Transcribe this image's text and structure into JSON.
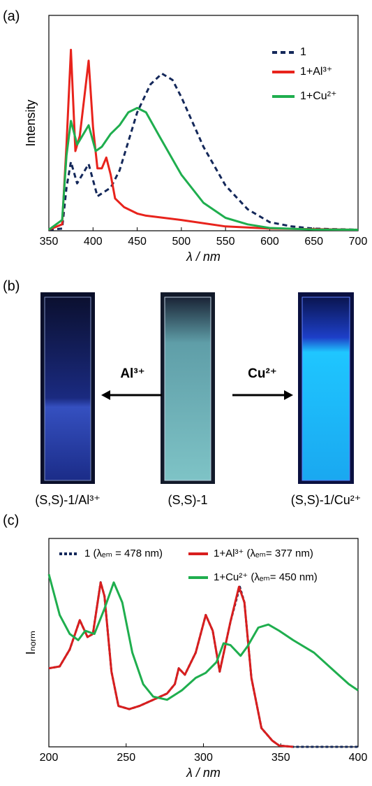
{
  "chart_data": [
    {
      "type": "line",
      "label": "(a)",
      "y_label": "Intensity",
      "x_label": "λ / nm",
      "xlim": [
        350,
        700
      ],
      "xticks": [
        350,
        400,
        450,
        500,
        550,
        600,
        650,
        700
      ],
      "ylim": [
        0,
        100
      ],
      "series": [
        {
          "name": "1",
          "color": "#14285a",
          "linestyle": "dashed",
          "x": [
            350,
            365,
            370,
            375,
            382,
            395,
            405,
            420,
            430,
            450,
            465,
            478,
            490,
            500,
            525,
            550,
            575,
            600,
            625,
            650,
            700
          ],
          "values": [
            0.5,
            1,
            20,
            32,
            22,
            31,
            16,
            20,
            28,
            55,
            68,
            73,
            70,
            62,
            39,
            21,
            10,
            4,
            2,
            1,
            0.5
          ]
        },
        {
          "name": "1+Al³⁺",
          "color": "#e8231c",
          "linestyle": "solid",
          "x": [
            350,
            365,
            370,
            375,
            380,
            385,
            395,
            400,
            405,
            410,
            415,
            420,
            425,
            435,
            450,
            460,
            500,
            550,
            600,
            700
          ],
          "values": [
            0.5,
            3,
            40,
            84,
            37,
            44,
            79,
            48,
            29,
            29,
            34,
            26,
            15,
            11,
            8,
            7,
            5,
            2,
            1,
            0.5
          ]
        },
        {
          "name": "1+Cu²⁺",
          "color": "#1fae4e",
          "linestyle": "solid",
          "x": [
            350,
            365,
            370,
            375,
            382,
            395,
            403,
            410,
            420,
            430,
            440,
            450,
            460,
            475,
            500,
            525,
            550,
            575,
            600,
            650,
            700
          ],
          "values": [
            0.5,
            5,
            35,
            51,
            40,
            49,
            37,
            39,
            45,
            49,
            55,
            57,
            55,
            44,
            26,
            13,
            6,
            3,
            1.3,
            0.6,
            0.5
          ]
        }
      ]
    },
    {
      "type": "line",
      "label": "(c)",
      "y_label": "Iₙₒᵣₘ",
      "x_label": "λ / nm",
      "xlim": [
        200,
        400
      ],
      "xticks": [
        200,
        250,
        300,
        350,
        400
      ],
      "ylim": [
        0,
        100
      ],
      "series": [
        {
          "name": "1 (λₑₘ = 478 nm)",
          "color": "#14285a",
          "linestyle": "dotted",
          "x": [
            200,
            207,
            213.5,
            220,
            225,
            228.5,
            233.5,
            236,
            240.5,
            245,
            252,
            258.5,
            267.5,
            276.5,
            281.5,
            284,
            288,
            295,
            301.5,
            306,
            310.5,
            317.5,
            323.5,
            326.5,
            331,
            337.5,
            344.5,
            349,
            358,
            400
          ],
          "values": [
            37.7,
            38.6,
            46.7,
            60.8,
            52.7,
            54.2,
            79,
            72.3,
            36.1,
            19.6,
            18.1,
            19.6,
            22.6,
            25.6,
            30.1,
            37.7,
            34.6,
            45.2,
            63.3,
            55.7,
            36.1,
            60.2,
            76.8,
            69.3,
            33.1,
            9,
            3,
            0.6,
            0,
            0
          ]
        },
        {
          "name": "1+Al³⁺ (λₑₘ= 377 nm)",
          "color": "#d81e1e",
          "linestyle": "solid",
          "x": [
            200,
            207,
            213.5,
            220,
            225,
            228.5,
            233.5,
            236,
            240.5,
            245,
            252,
            258.5,
            267.5,
            276.5,
            281.5,
            284,
            288,
            295,
            301.5,
            306,
            310.5,
            317.5,
            323,
            326.5,
            331,
            337.5,
            344.5,
            349,
            358
          ],
          "values": [
            37.7,
            38.6,
            46.7,
            60.8,
            52.7,
            54.2,
            78.9,
            72.3,
            36.1,
            19.6,
            18.1,
            19.6,
            22.6,
            25.6,
            30.1,
            37.7,
            34.6,
            45.2,
            63.3,
            55.7,
            36.1,
            60.2,
            76.8,
            69.3,
            33.1,
            9,
            3,
            0.6,
            0
          ]
        },
        {
          "name": "1+Cu²⁺ (λₑₘ= 450 nm)",
          "color": "#1fae4e",
          "linestyle": "solid",
          "x": [
            200,
            207,
            213.5,
            219,
            223.5,
            229.5,
            236,
            242,
            247.5,
            254,
            261,
            267.5,
            276.5,
            286,
            295,
            301.5,
            308.5,
            313,
            317.5,
            324,
            328.5,
            335.5,
            342,
            349,
            358,
            371.5,
            385,
            394,
            400
          ],
          "values": [
            82.8,
            63.3,
            54.2,
            51.2,
            55.7,
            54.2,
            66.3,
            78.9,
            69.3,
            45.2,
            30.1,
            24.1,
            22.6,
            27.1,
            33.1,
            35.5,
            40.7,
            49.7,
            48.8,
            43.7,
            48.2,
            57.2,
            58.7,
            55.7,
            51.2,
            45.2,
            36.1,
            30.1,
            27.1
          ]
        }
      ]
    }
  ],
  "photos": {
    "label": "(b)",
    "left_arrow": "Al³⁺",
    "right_arrow": "Cu²⁺",
    "captions": [
      "(S,S)-1/Al³⁺",
      "(S,S)-1",
      "(S,S)-1/Cu²⁺"
    ]
  }
}
